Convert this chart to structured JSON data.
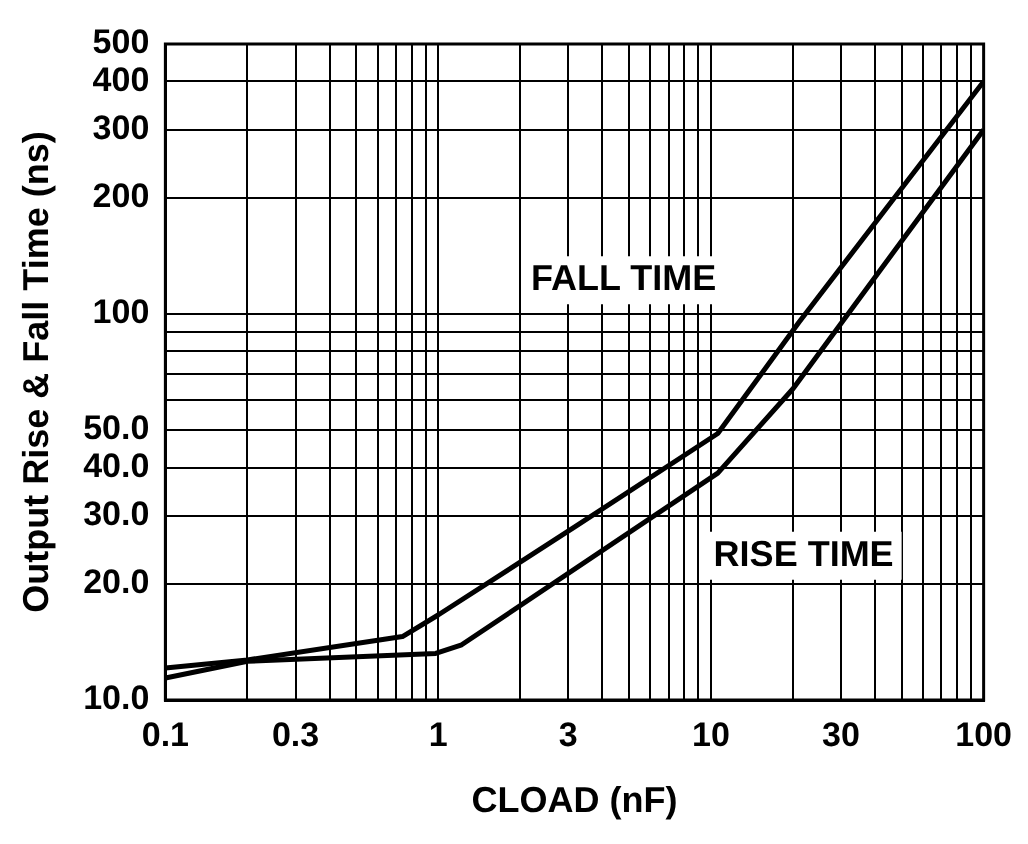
{
  "chart_data": {
    "type": "line",
    "xlabel": "CLOAD (nF)",
    "ylabel": "Output Rise & Fall Time (ns)",
    "log": "xy",
    "grid": true,
    "legend": false,
    "xlim": [
      0.1,
      100
    ],
    "ylim": [
      10,
      500
    ],
    "xticks": [
      0.1,
      {
        "value": 0.2,
        "label": null
      },
      0.3,
      {
        "value": 0.4,
        "label": null
      },
      {
        "value": 0.5,
        "label": null
      },
      {
        "value": 0.6,
        "label": null
      },
      {
        "value": 0.7,
        "label": null
      },
      {
        "value": 0.8,
        "label": null
      },
      {
        "value": 0.9,
        "label": null
      },
      1,
      {
        "value": 2,
        "label": null
      },
      3,
      {
        "value": 4,
        "label": null
      },
      {
        "value": 5,
        "label": null
      },
      {
        "value": 6,
        "label": null
      },
      {
        "value": 7,
        "label": null
      },
      {
        "value": 8,
        "label": null
      },
      {
        "value": 9,
        "label": null
      },
      10,
      {
        "value": 20,
        "label": null
      },
      30,
      {
        "value": 40,
        "label": null
      },
      {
        "value": 50,
        "label": null
      },
      {
        "value": 60,
        "label": null
      },
      {
        "value": 70,
        "label": null
      },
      {
        "value": 80,
        "label": null
      },
      {
        "value": 90,
        "label": null
      },
      100
    ],
    "yticks": [
      {
        "value": 10,
        "label": "10.0"
      },
      {
        "value": 20,
        "label": "20.0"
      },
      {
        "value": 30,
        "label": "30.0"
      },
      {
        "value": 40,
        "label": "40.0"
      },
      {
        "value": 50,
        "label": "50.0"
      },
      {
        "value": 60,
        "label": null
      },
      {
        "value": 70,
        "label": null
      },
      {
        "value": 80,
        "label": null
      },
      {
        "value": 90,
        "label": null
      },
      100,
      200,
      300,
      400,
      500
    ],
    "series": [
      {
        "color": "#000000",
        "x": [
          0.1,
          0.2,
          0.74,
          1,
          3.2,
          10.6,
          21,
          100
        ],
        "values": [
          12.1,
          12.7,
          14.6,
          16.6,
          28.2,
          49,
          95,
          400
        ]
      },
      {
        "color": "#000000",
        "x": [
          0.1,
          0.2,
          0.98,
          1.22,
          10.6,
          20,
          100
        ],
        "values": [
          11.4,
          12.6,
          13.2,
          13.9,
          38.7,
          64,
          300
        ]
      }
    ],
    "annotations": [
      "FALL TIME",
      "RISE TIME"
    ]
  }
}
